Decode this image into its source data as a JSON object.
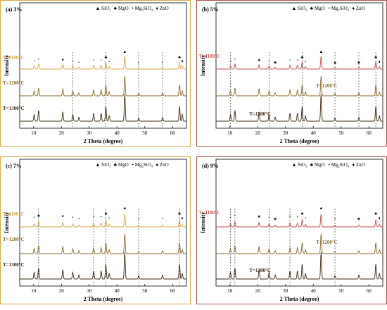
{
  "legend": {
    "items": [
      {
        "symbol": "▲",
        "label": "SiO₂"
      },
      {
        "symbol": "♣",
        "label": "MgO"
      },
      {
        "symbol": "•",
        "label": "Mg₂SiO₄"
      },
      {
        "symbol": "♦",
        "label": "ZnO"
      }
    ]
  },
  "axis": {
    "xlabel": "2 Theta (degree)",
    "ylabel": "Intensity",
    "xlim": [
      5,
      65
    ],
    "xticks": [
      "10",
      "20",
      "30",
      "40",
      "50",
      "60"
    ]
  },
  "colors": {
    "T1100": "#d9a845",
    "T1200": "#8a6a2a",
    "T1300": "#3d2a10"
  },
  "chart_data": [
    {
      "type": "line",
      "title": "(a)   3%",
      "border_color": "#d9a845",
      "t1100_color": "#d9a845",
      "temperatures": [
        "T=1100°C",
        "T=1200°C",
        "T=1300°C"
      ],
      "peaks_x": [
        10.2,
        11.8,
        20.5,
        24.1,
        26.3,
        31.6,
        34.3,
        36.0,
        37.2,
        42.8,
        47.8,
        56.4,
        62.5,
        63.5
      ],
      "peaks_h": [
        0.25,
        0.4,
        0.35,
        0.25,
        0.15,
        0.3,
        0.3,
        0.55,
        0.2,
        1.0,
        0.12,
        0.15,
        0.55,
        0.25
      ],
      "marked": [
        {
          "x": 10.2,
          "symbol": "•"
        },
        {
          "x": 11.8,
          "symbol": "•"
        },
        {
          "x": 20.5,
          "symbol": "♦"
        },
        {
          "x": 24.1,
          "symbol": "•"
        },
        {
          "x": 26.3,
          "symbol": "•"
        },
        {
          "x": 31.6,
          "symbol": "•"
        },
        {
          "x": 34.3,
          "symbol": "•"
        },
        {
          "x": 36.0,
          "symbol": "♣"
        },
        {
          "x": 37.2,
          "symbol": "•"
        },
        {
          "x": 42.8,
          "symbol": "▲"
        },
        {
          "x": 47.8,
          "symbol": "•"
        },
        {
          "x": 56.4,
          "symbol": "•"
        },
        {
          "x": 62.5,
          "symbol": "♣"
        },
        {
          "x": 63.5,
          "symbol": "♦"
        }
      ],
      "dashed_x": [
        24.1,
        36.0,
        47.8,
        56.4
      ]
    },
    {
      "type": "line",
      "title": "(b)   5%",
      "border_color": "#b05050",
      "t1100_color": "#c0504d",
      "temperatures": [
        "T=1100°C",
        "T=1200°C",
        "T=1300°C"
      ],
      "peaks_x": [
        10.2,
        11.8,
        20.5,
        24.1,
        26.3,
        31.6,
        34.3,
        36.0,
        37.2,
        42.8,
        47.8,
        56.4,
        62.5,
        63.8
      ],
      "peaks_h": [
        0.25,
        0.4,
        0.35,
        0.25,
        0.15,
        0.3,
        0.3,
        0.55,
        0.2,
        1.0,
        0.12,
        0.15,
        0.55,
        0.2
      ],
      "marked": [
        {
          "x": 10.2,
          "symbol": "•"
        },
        {
          "x": 11.8,
          "symbol": "•"
        },
        {
          "x": 20.5,
          "symbol": "▲"
        },
        {
          "x": 24.1,
          "symbol": "•"
        },
        {
          "x": 26.3,
          "symbol": "♣"
        },
        {
          "x": 31.6,
          "symbol": "•"
        },
        {
          "x": 34.3,
          "symbol": "•"
        },
        {
          "x": 36.0,
          "symbol": "♣"
        },
        {
          "x": 37.2,
          "symbol": "•"
        },
        {
          "x": 42.8,
          "symbol": "▲"
        },
        {
          "x": 47.8,
          "symbol": "♣"
        },
        {
          "x": 56.4,
          "symbol": "♣"
        },
        {
          "x": 62.5,
          "symbol": "♣"
        },
        {
          "x": 63.8,
          "symbol": "♦"
        }
      ],
      "dashed_x": [
        10.2,
        24.1,
        36.0,
        47.8,
        56.4,
        62.5
      ]
    },
    {
      "type": "line",
      "title": "(c)   7%",
      "border_color": "#d9a845",
      "t1100_color": "#d9a845",
      "temperatures": [
        "T=1100°C",
        "T=1200°C",
        "T=1300°C"
      ],
      "peaks_x": [
        10.2,
        11.8,
        20.5,
        24.1,
        26.3,
        31.6,
        34.3,
        36.0,
        37.2,
        42.8,
        47.8,
        56.4,
        62.5,
        63.5
      ],
      "peaks_h": [
        0.25,
        0.4,
        0.35,
        0.25,
        0.15,
        0.3,
        0.3,
        0.55,
        0.2,
        1.0,
        0.12,
        0.15,
        0.55,
        0.2
      ],
      "marked": [
        {
          "x": 10.2,
          "symbol": "•"
        },
        {
          "x": 11.8,
          "symbol": "♣"
        },
        {
          "x": 20.5,
          "symbol": "♦"
        },
        {
          "x": 24.1,
          "symbol": "•"
        },
        {
          "x": 26.3,
          "symbol": "•"
        },
        {
          "x": 31.6,
          "symbol": "•"
        },
        {
          "x": 34.3,
          "symbol": "•"
        },
        {
          "x": 36.0,
          "symbol": "♣"
        },
        {
          "x": 37.2,
          "symbol": "•"
        },
        {
          "x": 42.8,
          "symbol": "▲"
        },
        {
          "x": 47.8,
          "symbol": "•"
        },
        {
          "x": 56.4,
          "symbol": "•"
        },
        {
          "x": 62.5,
          "symbol": "♣"
        },
        {
          "x": 63.5,
          "symbol": "♦"
        }
      ],
      "dashed_x": [
        11.8,
        31.6,
        36.0,
        47.8,
        62.5
      ]
    },
    {
      "type": "line",
      "title": "(d)   9%",
      "border_color": "#b05050",
      "t1100_color": "#c0504d",
      "temperatures": [
        "T=1100°C",
        "T=1200°C",
        "T=1300°C"
      ],
      "peaks_x": [
        10.2,
        11.8,
        20.5,
        24.1,
        26.3,
        31.6,
        34.3,
        36.0,
        37.2,
        42.8,
        47.8,
        56.4,
        62.5,
        63.8
      ],
      "peaks_h": [
        0.25,
        0.4,
        0.35,
        0.25,
        0.15,
        0.3,
        0.3,
        0.55,
        0.2,
        1.0,
        0.12,
        0.15,
        0.55,
        0.2
      ],
      "marked": [
        {
          "x": 10.2,
          "symbol": "•"
        },
        {
          "x": 11.8,
          "symbol": "•"
        },
        {
          "x": 20.5,
          "symbol": "▲"
        },
        {
          "x": 24.1,
          "symbol": "•"
        },
        {
          "x": 26.3,
          "symbol": "♣"
        },
        {
          "x": 31.6,
          "symbol": "•"
        },
        {
          "x": 34.3,
          "symbol": "•"
        },
        {
          "x": 36.0,
          "symbol": "♣"
        },
        {
          "x": 37.2,
          "symbol": "•"
        },
        {
          "x": 42.8,
          "symbol": "▲"
        },
        {
          "x": 47.8,
          "symbol": "•"
        },
        {
          "x": 56.4,
          "symbol": "♣"
        },
        {
          "x": 62.5,
          "symbol": "♣"
        },
        {
          "x": 63.8,
          "symbol": "♦"
        }
      ],
      "dashed_x": [
        10.2,
        11.8,
        24.1,
        31.6,
        47.8
      ]
    }
  ]
}
